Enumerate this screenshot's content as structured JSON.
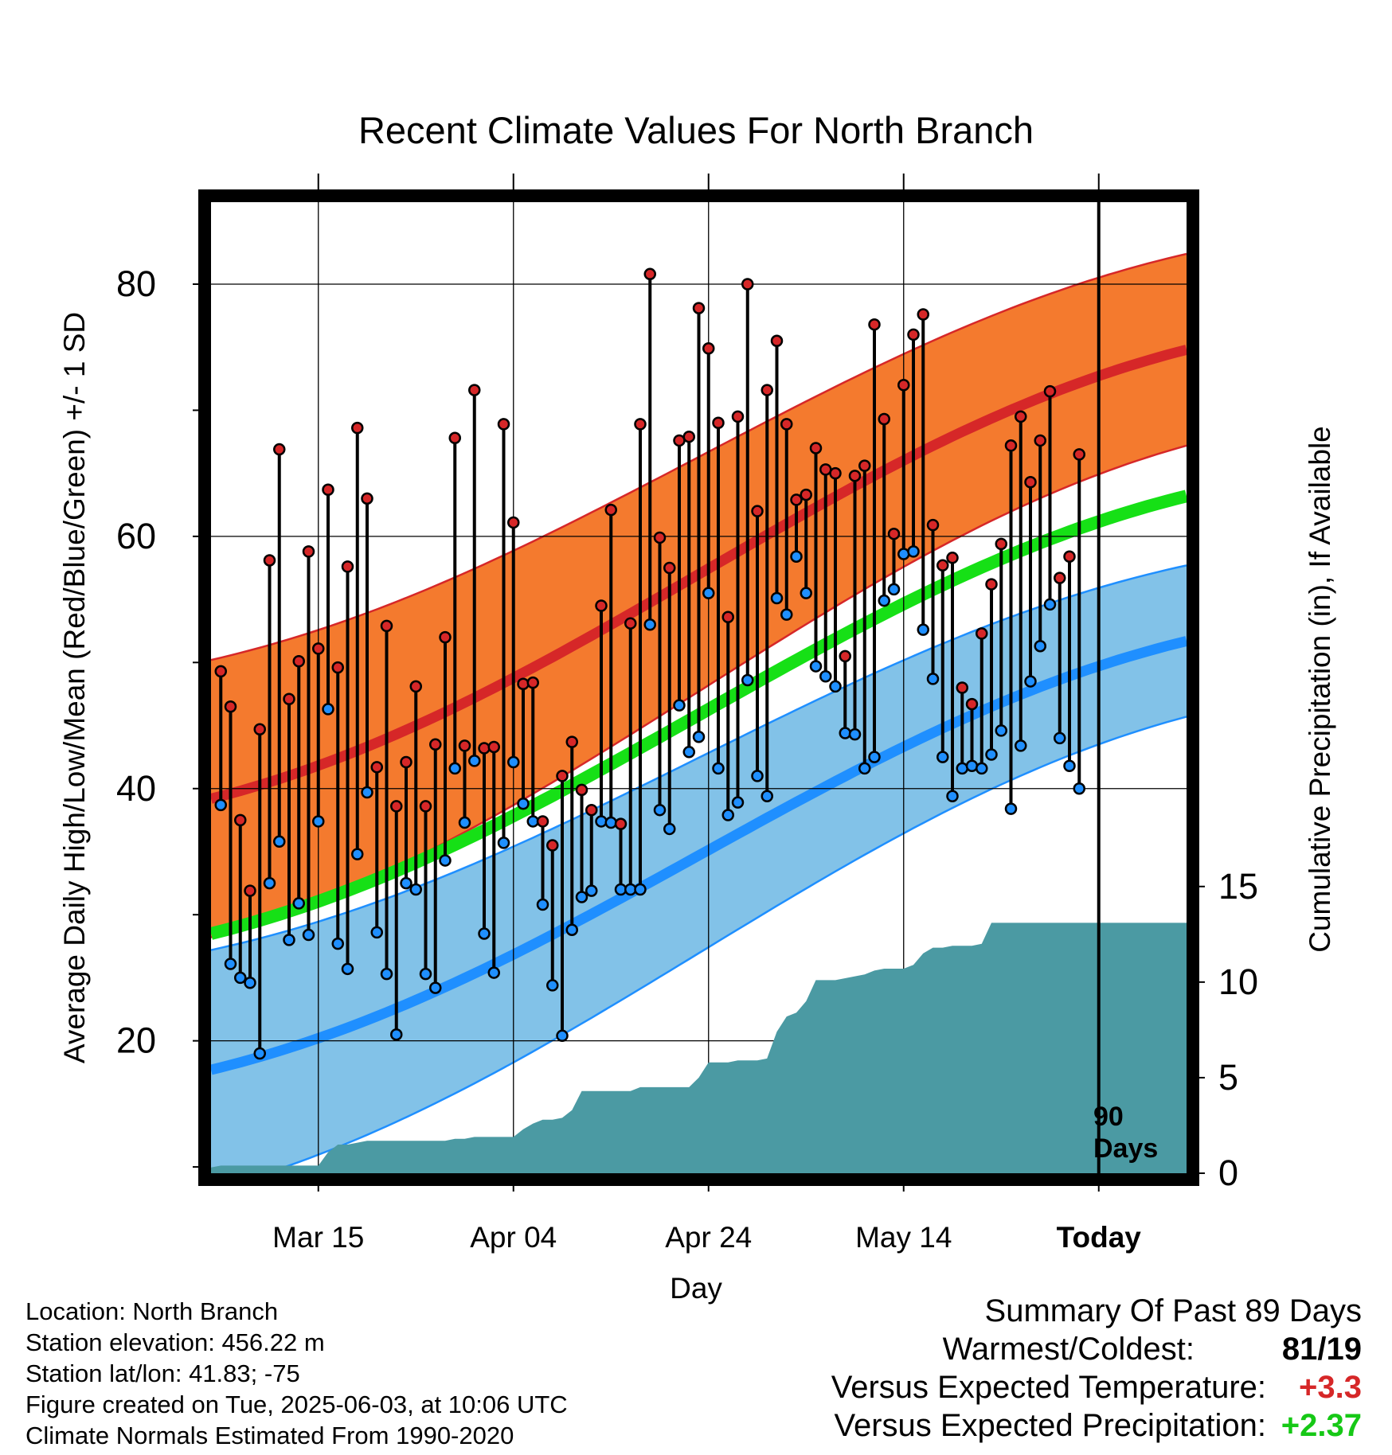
{
  "chart_data": {
    "type": "line",
    "title": "Recent Climate Values For North Branch",
    "xlabel": "Day",
    "ylabel": "Average Daily High/Low/Mean (Red/Blue/Green) +/- 1 SD",
    "y2label": "Cumulative Precipitation (in), If Available",
    "x_tick_labels": [
      "Mar 15",
      "Apr 04",
      "Apr 24",
      "May 14",
      "Today"
    ],
    "x_tick_days": [
      10,
      30,
      50,
      70,
      90
    ],
    "x_range_days": [
      -1,
      99
    ],
    "ylim": [
      9.5,
      86.5
    ],
    "y_ticks": [
      20,
      40,
      60,
      80
    ],
    "y_minor_ticks": [
      10,
      30,
      50,
      70
    ],
    "y2lim": [
      0,
      50.8
    ],
    "y2_ticks": [
      0,
      5,
      10,
      15
    ],
    "grid": true,
    "marker_annotation": "90\nDays",
    "colors": {
      "high": "#d62728",
      "low": "#1f8fff",
      "mean": "#16e016",
      "high_band": "#f47a2e",
      "low_band": "#82c2e8",
      "precip": "#4b9aa3"
    },
    "normals": {
      "x": [
        -1,
        99
      ],
      "high_mean": [
        39.2,
        74.8
      ],
      "high_sd": [
        11.0,
        7.6
      ],
      "low_mean": [
        17.7,
        51.7
      ],
      "low_sd": [
        9.5,
        6.0
      ],
      "mean": [
        28.5,
        63.2
      ]
    },
    "daily": {
      "day_start": 0,
      "high": [
        49.3,
        46.5,
        37.5,
        31.9,
        44.7,
        58.1,
        66.9,
        47.1,
        50.1,
        58.8,
        51.1,
        63.7,
        49.6,
        57.6,
        68.6,
        63.0,
        41.7,
        52.9,
        38.6,
        42.1,
        48.1,
        38.6,
        43.5,
        52.0,
        67.8,
        43.4,
        71.6,
        43.2,
        43.3,
        68.9,
        61.1,
        48.3,
        48.4,
        37.4,
        35.5,
        41.0,
        43.7,
        39.9,
        38.3,
        54.5,
        62.1,
        37.2,
        53.1,
        68.9,
        80.8,
        59.9,
        57.5,
        67.6,
        67.9,
        78.1,
        74.9,
        69.0,
        53.6,
        69.5,
        80.0,
        62.0,
        71.6,
        75.5,
        68.9,
        62.9,
        63.3,
        67.0,
        65.3,
        65.0,
        50.5,
        64.8,
        65.6,
        76.8,
        69.3,
        60.2,
        72.0,
        76.0,
        77.6,
        60.9,
        57.7,
        58.3,
        48.0,
        46.7,
        52.3,
        56.2,
        59.4,
        67.2,
        69.5,
        64.3,
        67.6,
        71.5,
        56.7,
        58.4,
        66.5
      ],
      "low": [
        38.7,
        26.1,
        25.0,
        24.6,
        19.0,
        32.5,
        35.8,
        28.0,
        30.9,
        28.4,
        37.4,
        46.3,
        27.7,
        25.7,
        34.8,
        39.7,
        28.6,
        25.3,
        20.5,
        32.5,
        32.0,
        25.3,
        24.2,
        34.3,
        41.6,
        37.3,
        42.2,
        28.5,
        25.4,
        35.7,
        42.1,
        38.8,
        37.4,
        30.8,
        24.4,
        20.4,
        28.8,
        31.4,
        31.9,
        37.4,
        37.3,
        32.0,
        32.0,
        32.0,
        53.0,
        38.3,
        36.8,
        46.6,
        42.9,
        44.1,
        55.5,
        41.6,
        37.9,
        38.9,
        48.6,
        41.0,
        39.4,
        55.1,
        53.8,
        58.4,
        55.5,
        49.7,
        48.9,
        48.1,
        44.4,
        44.3,
        41.6,
        42.5,
        54.9,
        55.8,
        58.6,
        58.8,
        52.6,
        48.7,
        42.5,
        39.4,
        41.6,
        41.8,
        41.6,
        42.7,
        44.6,
        38.4,
        43.4,
        48.5,
        51.3,
        54.6,
        44.0,
        41.8,
        40.0
      ]
    },
    "precip": {
      "x": [
        -1,
        0,
        10,
        11,
        12,
        13,
        14,
        15,
        16,
        17,
        18,
        19,
        20,
        21,
        22,
        23,
        24,
        25,
        26,
        27,
        28,
        29,
        30,
        31,
        32,
        33,
        34,
        35,
        36,
        37,
        38,
        39,
        40,
        41,
        42,
        43,
        44,
        45,
        46,
        47,
        48,
        49,
        50,
        51,
        52,
        53,
        54,
        55,
        56,
        57,
        58,
        59,
        60,
        61,
        62,
        63,
        64,
        65,
        66,
        67,
        68,
        69,
        70,
        71,
        72,
        73,
        74,
        75,
        76,
        77,
        78,
        79,
        80,
        81,
        82,
        83,
        84,
        85,
        86,
        87,
        88,
        89,
        90,
        99
      ],
      "y": [
        0.3,
        0.4,
        0.4,
        1.1,
        1.5,
        1.5,
        1.6,
        1.7,
        1.7,
        1.7,
        1.7,
        1.7,
        1.7,
        1.7,
        1.7,
        1.7,
        1.8,
        1.8,
        1.9,
        1.9,
        1.9,
        1.9,
        1.9,
        2.3,
        2.6,
        2.8,
        2.8,
        2.9,
        3.3,
        4.3,
        4.3,
        4.3,
        4.3,
        4.3,
        4.3,
        4.5,
        4.5,
        4.5,
        4.5,
        4.5,
        4.5,
        5.0,
        5.8,
        5.8,
        5.8,
        5.9,
        5.9,
        5.9,
        6.0,
        7.4,
        8.2,
        8.4,
        9.0,
        10.1,
        10.1,
        10.1,
        10.2,
        10.3,
        10.4,
        10.6,
        10.7,
        10.7,
        10.7,
        10.9,
        11.5,
        11.8,
        11.8,
        11.9,
        11.9,
        11.9,
        12.0,
        13.1,
        13.1,
        13.1,
        13.1,
        13.1,
        13.1,
        13.1,
        13.1,
        13.1,
        13.1,
        13.1,
        13.1,
        13.1
      ]
    }
  },
  "footer": {
    "location": "Location: North Branch",
    "elevation": "Station elevation: 456.22 m",
    "latlon": "Station lat/lon: 41.83; -75",
    "created": "Figure created on Tue, 2025-06-03, at 10:06 UTC",
    "normals": "Climate Normals Estimated From 1990-2020"
  },
  "summary": {
    "title": "Summary Of Past 89 Days",
    "warmest_coldest_label": "Warmest/Coldest:",
    "warmest": "81",
    "coldest": "19",
    "temp_label": "Versus Expected Temperature:",
    "temp_value": "+3.3",
    "temp_color": "#d62728",
    "precip_label": "Versus Expected Precipitation:",
    "precip_value": "+2.37",
    "precip_color": "#16c816"
  }
}
